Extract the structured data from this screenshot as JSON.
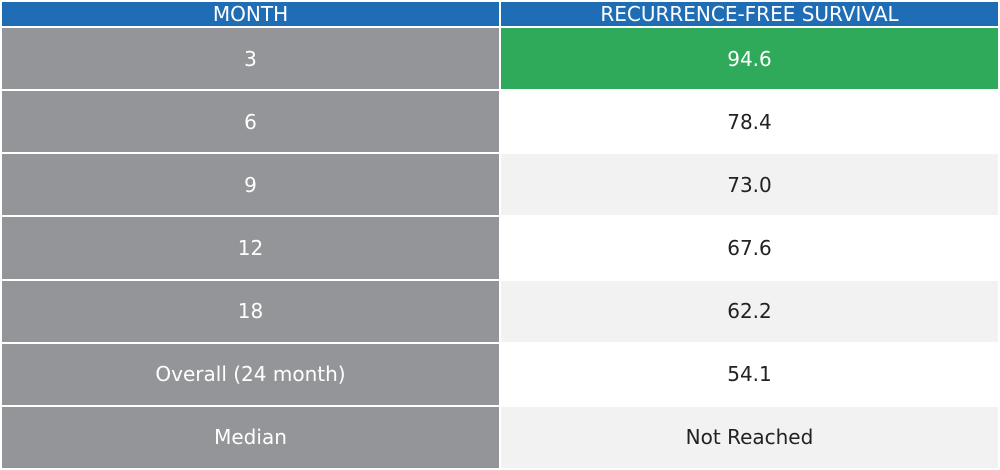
{
  "table": {
    "header": [
      "MONTH",
      "RECURRENCE-FREE SURVIVAL"
    ],
    "rows": [
      [
        "3",
        "94.6"
      ],
      [
        "6",
        "78.4"
      ],
      [
        "9",
        "73.0"
      ],
      [
        "12",
        "67.6"
      ],
      [
        "18",
        "62.2"
      ],
      [
        "Overall (24 month)",
        "54.1"
      ],
      [
        "Median",
        "Not Reached"
      ]
    ]
  }
}
